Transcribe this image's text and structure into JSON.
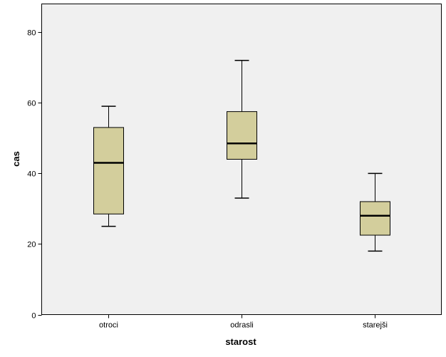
{
  "chart_data": {
    "type": "boxplot",
    "xlabel": "starost",
    "ylabel": "cas",
    "ylim": [
      0,
      88
    ],
    "yticks": [
      0,
      20,
      40,
      60,
      80
    ],
    "grid": false,
    "legend": "none",
    "colors": {
      "plot_background": "#f0f0f0",
      "box_fill": "#d3ce9c",
      "stroke": "#000000"
    },
    "categories": [
      "otroci",
      "odrasli",
      "starejši"
    ],
    "boxes": [
      {
        "category": "otroci",
        "min": 25,
        "q1": 28.5,
        "median": 43,
        "q3": 53,
        "max": 59
      },
      {
        "category": "odrasli",
        "min": 33,
        "q1": 44,
        "median": 48.5,
        "q3": 57.5,
        "max": 72
      },
      {
        "category": "starejši",
        "min": 18,
        "q1": 22.5,
        "median": 28,
        "q3": 32,
        "max": 40
      }
    ]
  }
}
